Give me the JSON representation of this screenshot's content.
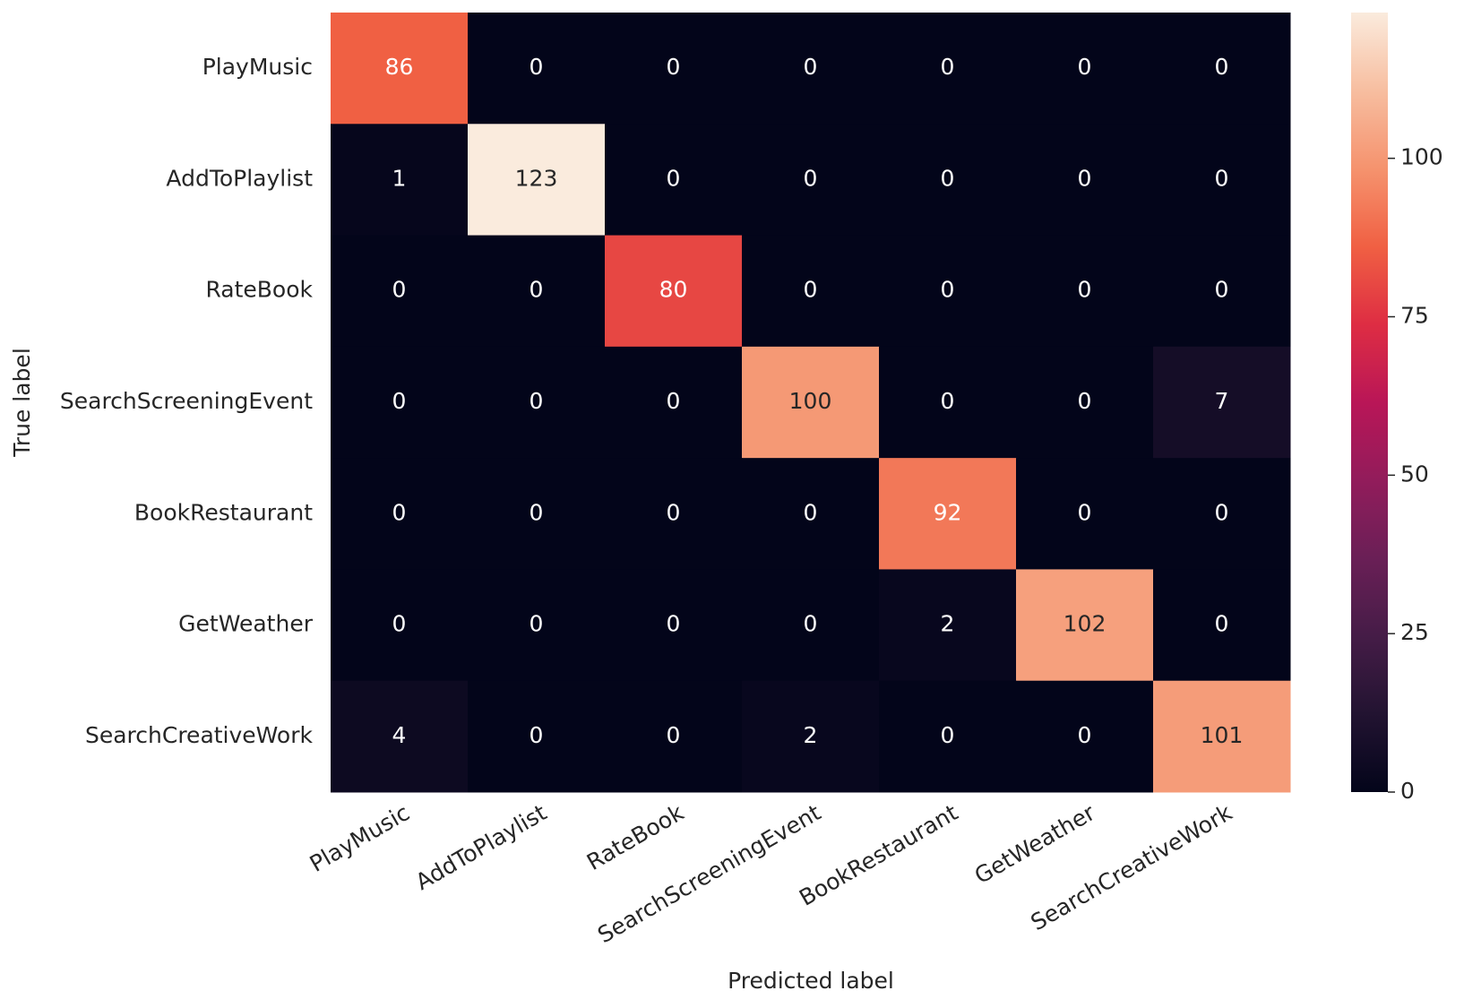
{
  "chart_data": {
    "type": "heatmap",
    "x_label": "Predicted label",
    "y_label": "True label",
    "x_categories": [
      "PlayMusic",
      "AddToPlaylist",
      "RateBook",
      "SearchScreeningEvent",
      "BookRestaurant",
      "GetWeather",
      "SearchCreativeWork"
    ],
    "y_categories": [
      "PlayMusic",
      "AddToPlaylist",
      "RateBook",
      "SearchScreeningEvent",
      "BookRestaurant",
      "GetWeather",
      "SearchCreativeWork"
    ],
    "values": [
      [
        86,
        0,
        0,
        0,
        0,
        0,
        0
      ],
      [
        1,
        123,
        0,
        0,
        0,
        0,
        0
      ],
      [
        0,
        0,
        80,
        0,
        0,
        0,
        0
      ],
      [
        0,
        0,
        0,
        100,
        0,
        0,
        7
      ],
      [
        0,
        0,
        0,
        0,
        92,
        0,
        0
      ],
      [
        0,
        0,
        0,
        0,
        2,
        102,
        0
      ],
      [
        4,
        0,
        0,
        2,
        0,
        0,
        101
      ]
    ],
    "colormap": "rocket",
    "clim": [
      0,
      123
    ],
    "cticks": [
      0,
      25,
      50,
      75,
      100
    ]
  }
}
